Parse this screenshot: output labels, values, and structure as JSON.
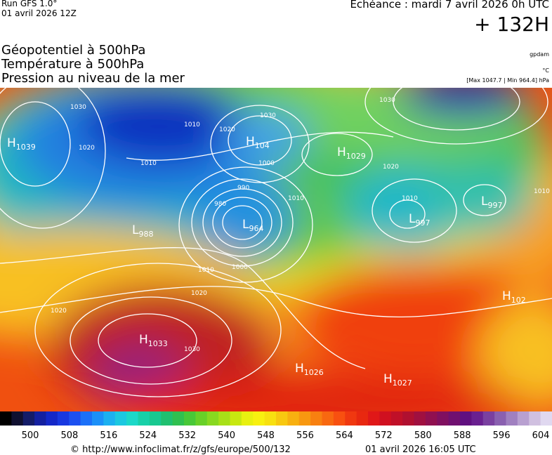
{
  "header": {
    "run": "Run GFS 1.0°",
    "run_date": "01 avril 2026 12Z",
    "forecast": "Echéance : mardi 7 avril 2026 0h UTC",
    "lead": "+ 132H"
  },
  "titles": [
    "Géopotentiel à 500hPa",
    "Température à 500hPa",
    "Pression au niveau de la mer"
  ],
  "units": {
    "geopotential": "gpdam",
    "temperature": "°C",
    "pressure": "[Max 1047.7 | Min 964.4] hPa"
  },
  "centers": [
    {
      "kind": "H",
      "value": "1039"
    },
    {
      "kind": "H",
      "value": "104"
    },
    {
      "kind": "H",
      "value": "1029"
    },
    {
      "kind": "L",
      "value": "964"
    },
    {
      "kind": "L",
      "value": "988"
    },
    {
      "kind": "L",
      "value": "997"
    },
    {
      "kind": "L",
      "value": "997"
    },
    {
      "kind": "H",
      "value": "1033"
    },
    {
      "kind": "H",
      "value": "1026"
    },
    {
      "kind": "H",
      "value": "1027"
    },
    {
      "kind": "H",
      "value": "102"
    }
  ],
  "isobar_labels": [
    "1030",
    "1020",
    "1010",
    "1030",
    "1020",
    "1010",
    "990",
    "980",
    "1000",
    "1010",
    "1000",
    "1010",
    "1020",
    "1020",
    "1030",
    "1030",
    "1010",
    "1020",
    "1010"
  ],
  "scale": {
    "ticks": [
      500,
      508,
      516,
      524,
      532,
      540,
      548,
      556,
      564,
      572,
      580,
      588,
      596,
      604
    ]
  },
  "footer": {
    "url": "© http://www.infoclimat.fr/z/gfs/europe/500/132",
    "date": "01 avril 2026 16:05 UTC"
  }
}
